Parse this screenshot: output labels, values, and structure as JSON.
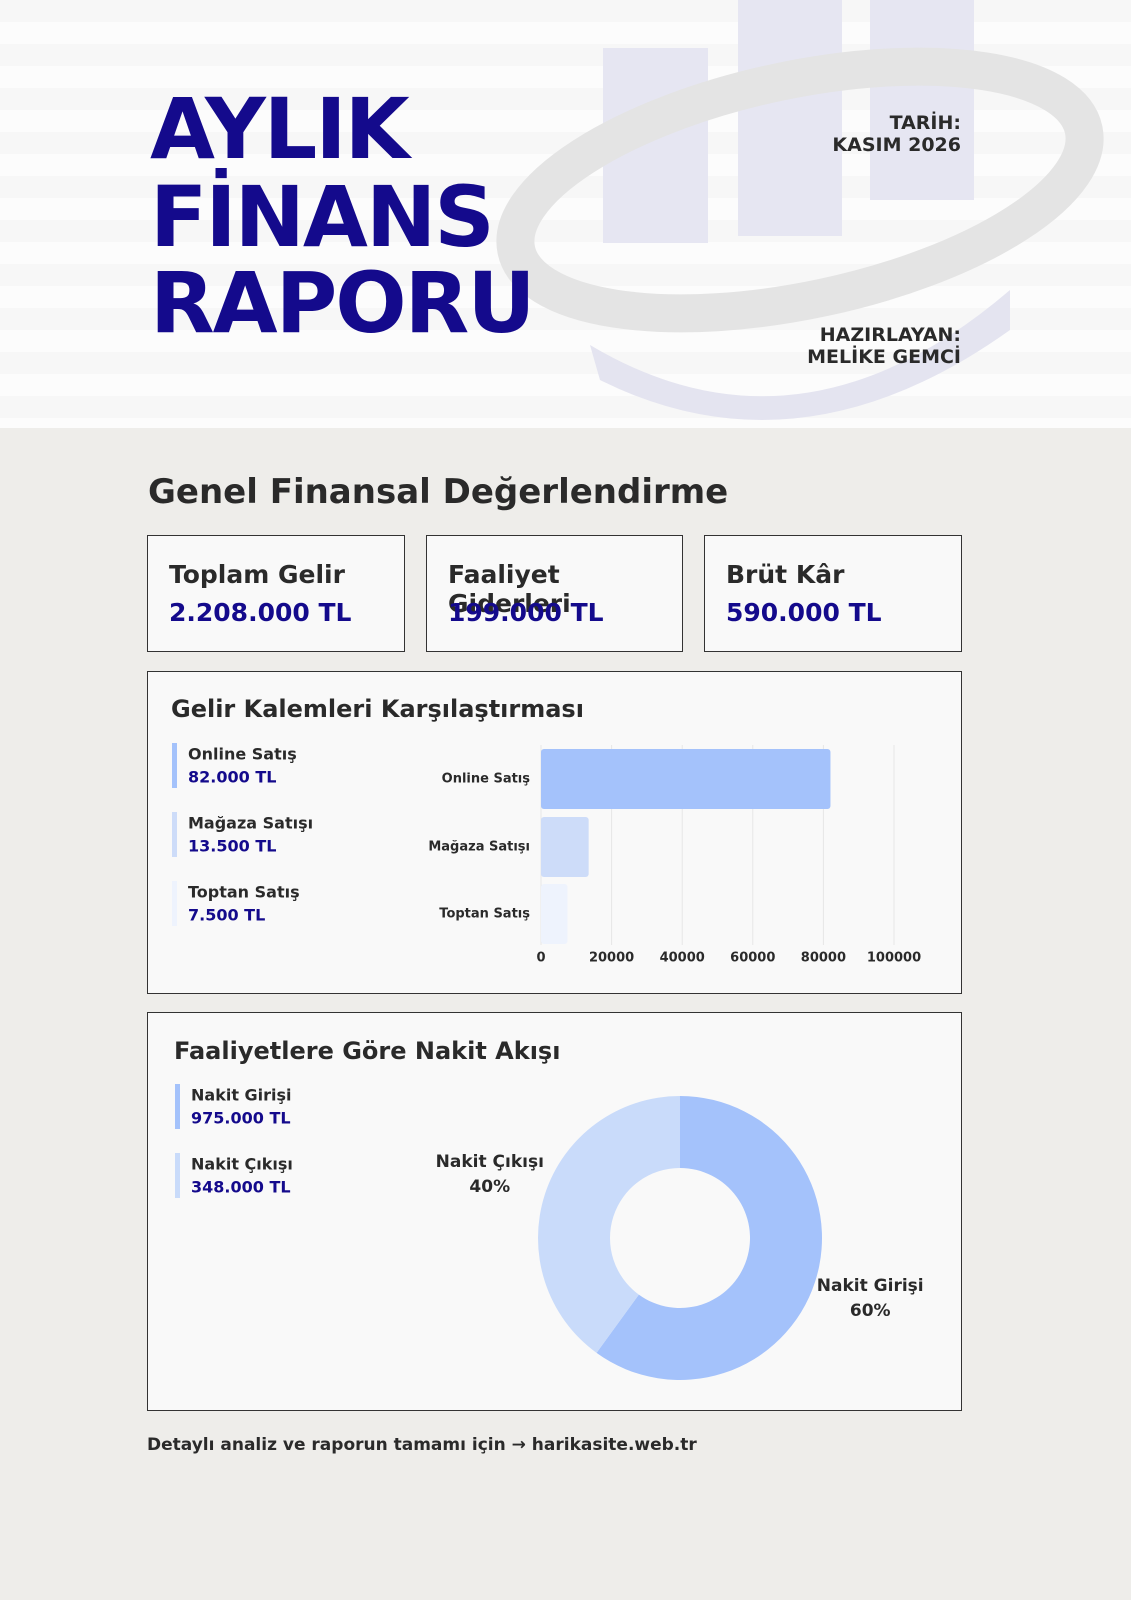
{
  "header": {
    "title": [
      "AYLIK",
      "FİNANS",
      "RAPORU"
    ],
    "date_label": "TARİH:",
    "date": "KASIM 2026",
    "author_label": "HAZIRLAYAN:",
    "author": "MELİKE GEMCİ"
  },
  "section_title": "Genel Finansal Değerlendirme",
  "kpis": [
    {
      "label": "Toplam Gelir",
      "value": "2.208.000 TL"
    },
    {
      "label": "Faaliyet Giderleri",
      "value": "199.000 TL"
    },
    {
      "label": "Brüt Kâr",
      "value": "590.000 TL"
    }
  ],
  "chart_data": [
    {
      "type": "bar",
      "orientation": "horizontal",
      "title": "Gelir Kalemleri Karşılaştırması",
      "categories": [
        "Online Satış",
        "Mağaza Satışı",
        "Toptan Satış"
      ],
      "values": [
        82000,
        13500,
        7500
      ],
      "value_labels": [
        "82.000 TL",
        "13.500 TL",
        "7.500 TL"
      ],
      "colors": [
        "#a4c2fb",
        "#cddcf9",
        "#eef3fd"
      ],
      "xlim": [
        0,
        100000
      ],
      "xticks": [
        0,
        20000,
        40000,
        60000,
        80000,
        100000
      ],
      "grid": true
    },
    {
      "type": "pie",
      "donut": true,
      "title": "Faaliyetlere Göre Nakit Akışı",
      "categories": [
        "Nakit Girişi",
        "Nakit Çıkışı"
      ],
      "values": [
        60,
        40
      ],
      "value_labels": [
        "60%",
        "40%"
      ],
      "amounts": [
        "975.000 TL",
        "348.000 TL"
      ],
      "colors": [
        "#a4c2fb",
        "#c9dbfa"
      ]
    }
  ],
  "footer": "Detaylı analiz ve raporun tamamı için → harikasite.web.tr"
}
